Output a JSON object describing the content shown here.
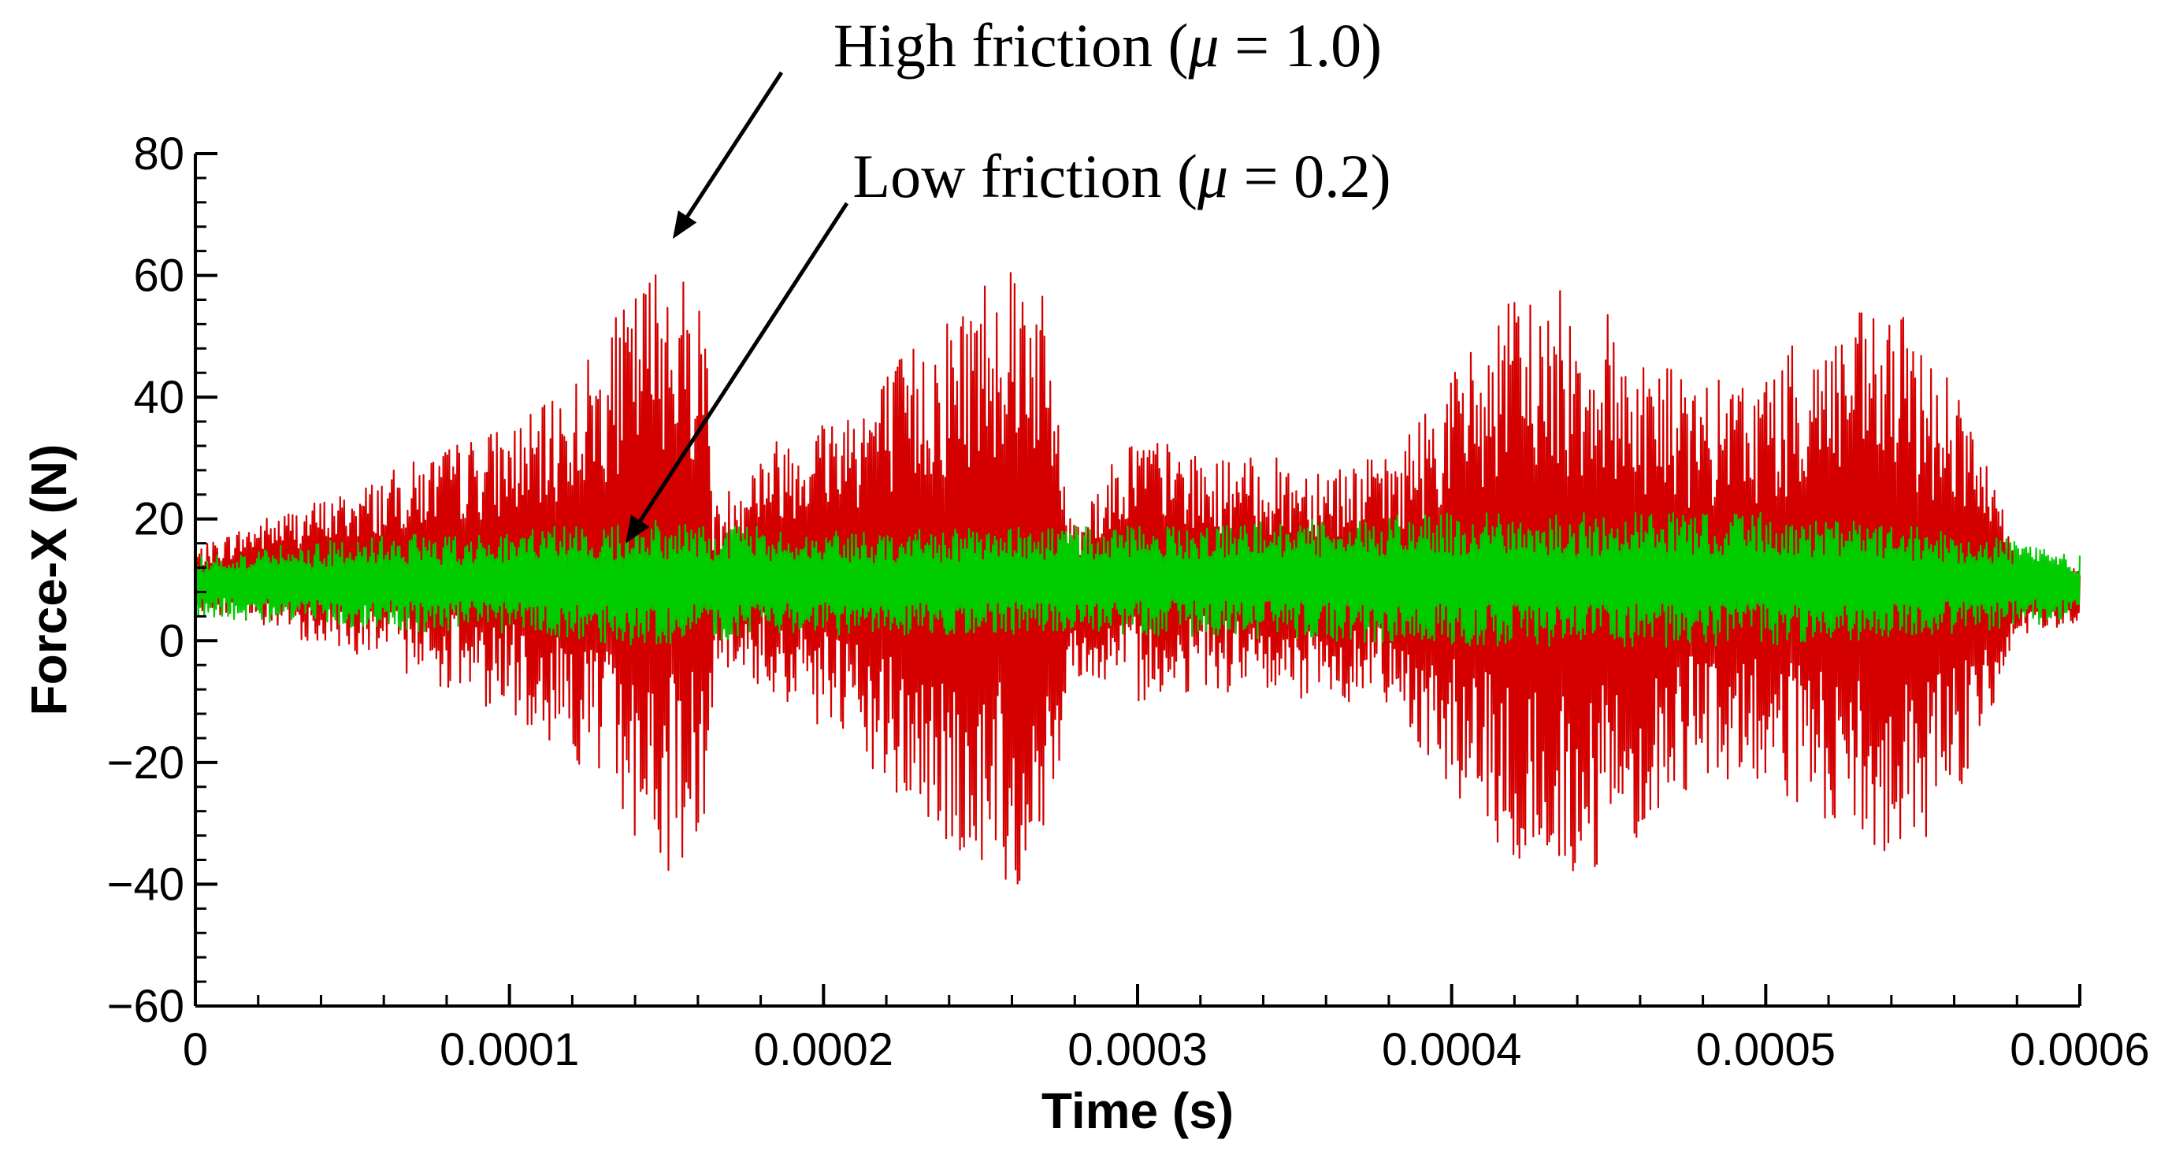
{
  "chart_data": {
    "type": "line",
    "title": "",
    "xlabel": "Time (s)",
    "ylabel": "Force-X (N)",
    "xlim": [
      0,
      0.0006
    ],
    "ylim": [
      -60,
      80
    ],
    "x_ticks": [
      "0",
      "0.0001",
      "0.0002",
      "0.0003",
      "0.0004",
      "0.0005",
      "0.0006"
    ],
    "x_tick_values": [
      0,
      0.0001,
      0.0002,
      0.0003,
      0.0004,
      0.0005,
      0.0006
    ],
    "y_ticks": [
      "−60",
      "−40",
      "−20",
      "0",
      "20",
      "40",
      "60",
      "80"
    ],
    "y_tick_values": [
      -60,
      -40,
      -20,
      0,
      20,
      40,
      60,
      80
    ],
    "grid": false,
    "legend": "none",
    "series": [
      {
        "color": "#d40000",
        "oscillation": "high-frequency, mean ~10 N",
        "envelope_upper": {
          "x": [
            0,
            2e-05,
            5e-05,
            8e-05,
            0.00011,
            0.00013,
            0.00015,
            0.000163,
            0.000165,
            0.00018,
            0.0002,
            0.00022,
            0.00024,
            0.00026,
            0.000268,
            0.000275,
            0.000278,
            0.0003,
            0.00032,
            0.00035,
            0.00038,
            0.0004,
            0.00042,
            0.00044,
            0.00046,
            0.00048,
            0.0005,
            0.00052,
            0.00054,
            0.00056,
            0.00058,
            0.0006
          ],
          "y": [
            15,
            20,
            25,
            32,
            38,
            50,
            66,
            55,
            22,
            32,
            38,
            45,
            55,
            67,
            62,
            40,
            20,
            35,
            30,
            30,
            30,
            45,
            57,
            58,
            50,
            42,
            45,
            53,
            55,
            45,
            15,
            12
          ]
        },
        "envelope_lower": {
          "x": [
            0,
            2e-05,
            5e-05,
            8e-05,
            0.00011,
            0.00013,
            0.00015,
            0.000163,
            0.000165,
            0.00018,
            0.0002,
            0.00022,
            0.00024,
            0.00026,
            0.000268,
            0.000275,
            0.000278,
            0.0003,
            0.00032,
            0.00035,
            0.00038,
            0.0004,
            0.00042,
            0.00044,
            0.00046,
            0.00048,
            0.0005,
            0.00052,
            0.00054,
            0.00056,
            0.00058,
            0.0006
          ],
          "y": [
            5,
            2,
            -2,
            -8,
            -15,
            -25,
            -40,
            -30,
            -5,
            -8,
            -15,
            -25,
            -35,
            -42,
            -38,
            -20,
            -5,
            -10,
            -8,
            -10,
            -10,
            -25,
            -38,
            -40,
            -32,
            -22,
            -25,
            -32,
            -38,
            -28,
            0,
            3
          ]
        }
      },
      {
        "color": "#00cc00",
        "oscillation": "high-frequency, mean ~10 N",
        "envelope_upper": {
          "x": [
            0,
            5e-05,
            0.0001,
            0.00014,
            0.0002,
            0.0003,
            0.0004,
            0.0005,
            0.00058,
            0.0006
          ],
          "y": [
            14,
            17,
            18,
            20,
            18,
            19,
            21,
            21,
            17,
            14
          ]
        },
        "envelope_lower": {
          "x": [
            0,
            5e-05,
            0.0001,
            0.00014,
            0.0002,
            0.0003,
            0.0004,
            0.0005,
            0.00058,
            0.0006
          ],
          "y": [
            4,
            2,
            1,
            -1,
            1,
            1,
            -1,
            -1,
            2,
            4
          ]
        }
      }
    ],
    "annotations": [
      {
        "text_main": "High friction (",
        "symbol": "μ",
        "text_tail": " = 1.0)",
        "points_to": {
          "x": 0.000152,
          "y": 66
        }
      },
      {
        "text_main": "Low friction (",
        "symbol": "μ",
        "text_tail": " = 0.2)",
        "points_to": {
          "x": 0.000137,
          "y": 16
        }
      }
    ]
  }
}
